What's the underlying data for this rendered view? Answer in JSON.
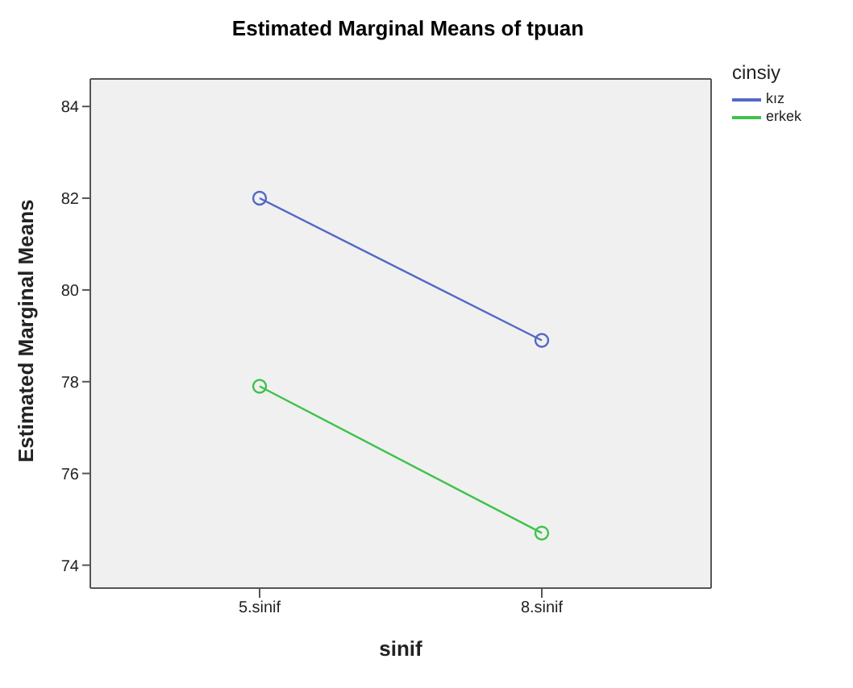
{
  "chart_data": {
    "type": "line",
    "title": "Estimated Marginal Means of tpuan",
    "xlabel": "sinif",
    "ylabel": "Estimated Marginal Means",
    "legend_title": "cinsiy",
    "categories": [
      "5.sinif",
      "8.sinif"
    ],
    "series": [
      {
        "name": "kız",
        "color": "#5368c5",
        "values": [
          82.0,
          78.9
        ]
      },
      {
        "name": "erkek",
        "color": "#3fc24a",
        "values": [
          77.9,
          74.7
        ]
      }
    ],
    "ylim": [
      73.5,
      84.6
    ],
    "yticks": [
      74,
      76,
      78,
      80,
      82,
      84
    ],
    "grid": false,
    "legend": "right",
    "marker": "circle",
    "line_style": "solid"
  }
}
